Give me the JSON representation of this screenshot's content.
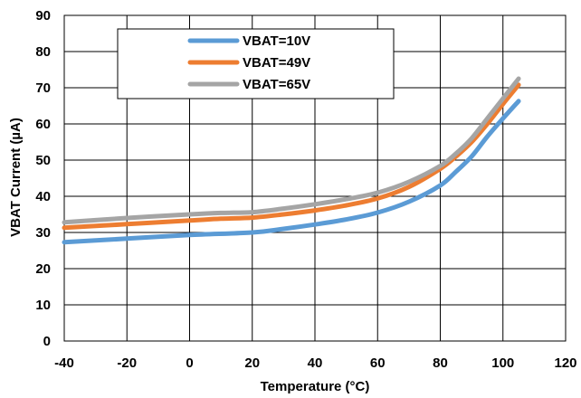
{
  "chart_data": {
    "type": "line",
    "title": "",
    "xlabel": "Temperature (°C)",
    "ylabel": "VBAT Current (µA)",
    "xlim": [
      -40,
      120
    ],
    "ylim": [
      0,
      90
    ],
    "x_ticks": [
      "-40",
      "-20",
      "0",
      "20",
      "40",
      "60",
      "80",
      "100",
      "120"
    ],
    "y_ticks": [
      "0",
      "10",
      "20",
      "30",
      "40",
      "50",
      "60",
      "70",
      "80",
      "90"
    ],
    "grid": true,
    "legend_position": "top-left",
    "series": [
      {
        "name": "VBAT=10V",
        "color": "#5B9BD5",
        "x": [
          -40,
          -20,
          0,
          20,
          30,
          40,
          50,
          60,
          70,
          80,
          85,
          90,
          95,
          100,
          105
        ],
        "y": [
          27.3,
          28.3,
          29.3,
          30.0,
          31.0,
          32.2,
          33.6,
          35.5,
          38.5,
          43.0,
          46.8,
          51.0,
          56.5,
          61.5,
          66.3
        ]
      },
      {
        "name": "VBAT=49V",
        "color": "#ED7D31",
        "x": [
          -40,
          -20,
          0,
          10,
          20,
          30,
          40,
          50,
          60,
          70,
          80,
          85,
          90,
          95,
          100,
          105
        ],
        "y": [
          31.3,
          32.3,
          33.3,
          33.8,
          34.1,
          35.0,
          36.1,
          37.5,
          39.4,
          42.6,
          47.6,
          51.0,
          55.0,
          60.0,
          65.5,
          70.8
        ]
      },
      {
        "name": "VBAT=65V",
        "color": "#A5A5A5",
        "x": [
          -40,
          -20,
          0,
          10,
          20,
          30,
          40,
          50,
          60,
          70,
          80,
          85,
          90,
          95,
          100,
          105
        ],
        "y": [
          32.8,
          34.0,
          35.0,
          35.4,
          35.6,
          36.6,
          37.8,
          39.2,
          41.0,
          44.0,
          48.4,
          51.8,
          56.0,
          61.5,
          67.0,
          72.5
        ]
      }
    ]
  }
}
